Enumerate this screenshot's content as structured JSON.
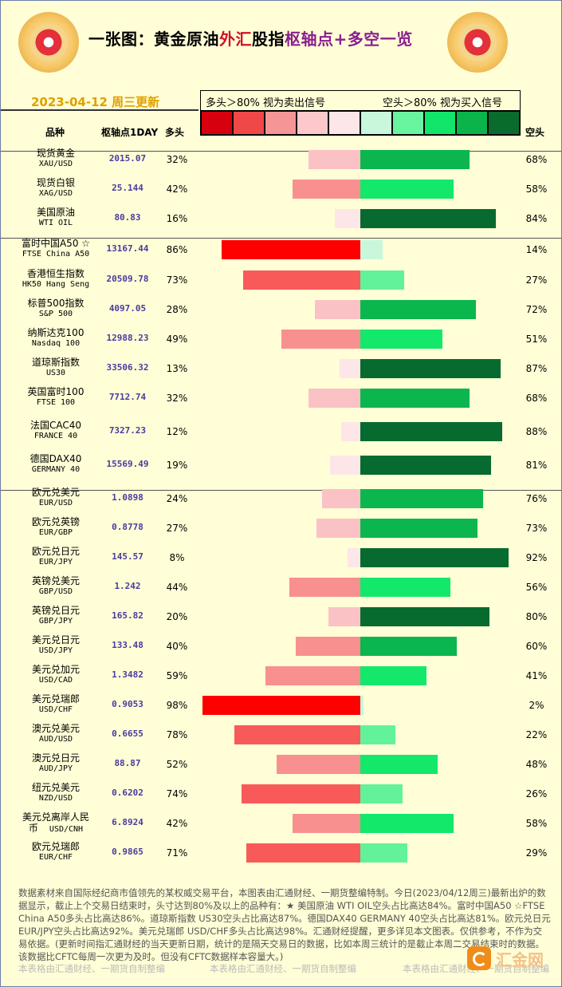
{
  "title": {
    "part1": "一张图：黄金原油",
    "part2": "外汇",
    "part3": "股指",
    "part4": "枢轴点+多空一览"
  },
  "date_label": "2023-04-12 周三更新",
  "legend": {
    "left": "多头＞80% 视为卖出信号",
    "right": "空头＞80% 视为买入信号"
  },
  "headers": {
    "name": "品种",
    "pivot": "枢轴点1DAY",
    "long": "多头",
    "short": "空头"
  },
  "colors": {
    "swatches": [
      "#d7000f",
      "#f04848",
      "#f59595",
      "#fcc8cc",
      "#fde6e8",
      "#c8f7dc",
      "#69f5a0",
      "#12e66a",
      "#0ab44b",
      "#0a6b2e"
    ],
    "long": [
      "#ff0000",
      "#f85a5a",
      "#f89090",
      "#fbc2c6",
      "#fde6e8"
    ],
    "short": [
      "#c8f7dc",
      "#62f29a",
      "#13e86b",
      "#0ab64d",
      "#076b2f"
    ]
  },
  "chart_data": {
    "type": "bar",
    "xlabel": "",
    "ylabel": "",
    "xlim": [
      0,
      100
    ],
    "series": [
      {
        "name": "多头"
      },
      {
        "name": "空头"
      }
    ],
    "rows": [
      {
        "name": "现货黄金",
        "code": "XAU/USD",
        "pivot": "2015.07",
        "long": 32,
        "short": 68,
        "long_label": "32%",
        "short_label": "68%"
      },
      {
        "name": "现货白银",
        "code": "XAG/USD",
        "pivot": "25.144",
        "long": 42,
        "short": 58,
        "long_label": "42%",
        "short_label": "58%"
      },
      {
        "name": "美国原油",
        "code": "WTI OIL",
        "pivot": "80.83",
        "long": 16,
        "short": 84,
        "long_label": "16%",
        "short_label": "84%"
      },
      {
        "name": "富时中国A50 ☆",
        "code": "FTSE China A50",
        "pivot": "13167.44",
        "long": 86,
        "short": 14,
        "long_label": "86%",
        "short_label": "14%"
      },
      {
        "name": "香港恒生指数",
        "code": "HK50 Hang Seng",
        "pivot": "20509.78",
        "long": 73,
        "short": 27,
        "long_label": "73%",
        "short_label": "27%"
      },
      {
        "name": "标普500指数",
        "code": "S&P 500",
        "pivot": "4097.05",
        "long": 28,
        "short": 72,
        "long_label": "28%",
        "short_label": "72%"
      },
      {
        "name": "纳斯达克100",
        "code": "Nasdaq 100",
        "pivot": "12988.23",
        "long": 49,
        "short": 51,
        "long_label": "49%",
        "short_label": "51%"
      },
      {
        "name": "道琼斯指数",
        "code": "US30",
        "pivot": "33506.32",
        "long": 13,
        "short": 87,
        "long_label": "13%",
        "short_label": "87%"
      },
      {
        "name": "英国富时100",
        "code": "FTSE 100",
        "pivot": "7712.74",
        "long": 32,
        "short": 68,
        "long_label": "32%",
        "short_label": "68%"
      },
      {
        "name": "法国CAC40",
        "code": "FRANCE 40",
        "pivot": "7327.23",
        "long": 12,
        "short": 88,
        "long_label": "12%",
        "short_label": "88%"
      },
      {
        "name": "德国DAX40",
        "code": "GERMANY 40",
        "pivot": "15569.49",
        "long": 19,
        "short": 81,
        "long_label": "19%",
        "short_label": "81%"
      },
      {
        "name": "欧元兑美元",
        "code": "EUR/USD",
        "pivot": "1.0898",
        "long": 24,
        "short": 76,
        "long_label": "24%",
        "short_label": "76%"
      },
      {
        "name": "欧元兑英镑",
        "code": "EUR/GBP",
        "pivot": "0.8778",
        "long": 27,
        "short": 73,
        "long_label": "27%",
        "short_label": "73%"
      },
      {
        "name": "欧元兑日元",
        "code": "EUR/JPY",
        "pivot": "145.57",
        "long": 8,
        "short": 92,
        "long_label": "8%",
        "short_label": "92%"
      },
      {
        "name": "英镑兑美元",
        "code": "GBP/USD",
        "pivot": "1.242",
        "long": 44,
        "short": 56,
        "long_label": "44%",
        "short_label": "56%"
      },
      {
        "name": "英镑兑日元",
        "code": "GBP/JPY",
        "pivot": "165.82",
        "long": 20,
        "short": 80,
        "long_label": "20%",
        "short_label": "80%"
      },
      {
        "name": "美元兑日元",
        "code": "USD/JPY",
        "pivot": "133.48",
        "long": 40,
        "short": 60,
        "long_label": "40%",
        "short_label": "60%"
      },
      {
        "name": "美元兑加元",
        "code": "USD/CAD",
        "pivot": "1.3482",
        "long": 59,
        "short": 41,
        "long_label": "59%",
        "short_label": "41%"
      },
      {
        "name": "美元兑瑞郎",
        "code": "USD/CHF",
        "pivot": "0.9053",
        "long": 98,
        "short": 2,
        "long_label": "98%",
        "short_label": "2%"
      },
      {
        "name": "澳元兑美元",
        "code": "AUD/USD",
        "pivot": "0.6655",
        "long": 78,
        "short": 22,
        "long_label": "78%",
        "short_label": "22%"
      },
      {
        "name": "澳元兑日元",
        "code": "AUD/JPY",
        "pivot": "88.87",
        "long": 52,
        "short": 48,
        "long_label": "52%",
        "short_label": "48%"
      },
      {
        "name": "纽元兑美元",
        "code": "NZD/USD",
        "pivot": "0.6202",
        "long": 74,
        "short": 26,
        "long_label": "74%",
        "short_label": "26%"
      },
      {
        "name": "美元兑离岸人民",
        "name2": "币",
        "code": "USD/CNH",
        "pivot": "6.8924",
        "long": 42,
        "short": 58,
        "long_label": "42%",
        "short_label": "58%"
      },
      {
        "name": "欧元兑瑞郎",
        "code": "EUR/CHF",
        "pivot": "0.9865",
        "long": 71,
        "short": 29,
        "long_label": "71%",
        "short_label": "29%"
      }
    ]
  },
  "footer": "数据素材来自国际经纪商市值领先的某权威交易平台，本图表由汇通财经、一期货整编特制。今日(2023/04/12周三)最新出炉的数据显示，截止上个交易日结束时，头寸达到80%及以上的品种有：★ 美国原油 WTI OIL空头占比高达84%。富时中国A50 ☆FTSE China A50多头占比高达86%。道琼斯指数 US30空头占比高达87%。德国DAX40  GERMANY 40空头占比高达81%。欧元兑日元 EUR/JPY空头占比高达92%。美元兑瑞郎 USD/CHF多头占比高达98%。汇通财经提醒，更多详见本文图表。仅供参考，不作为交易依据。(更新时间指汇通财经的当天更新日期，统计的是隔天交易日的数据，比如本周三统计的是截止本周二交易结束时的数据。该数据比CFTC每周一次更为及时。但没有CFTC数据样本容量大。)",
  "watermark": "本表格由汇通财经、一期货自制整编",
  "brand": "汇金网"
}
